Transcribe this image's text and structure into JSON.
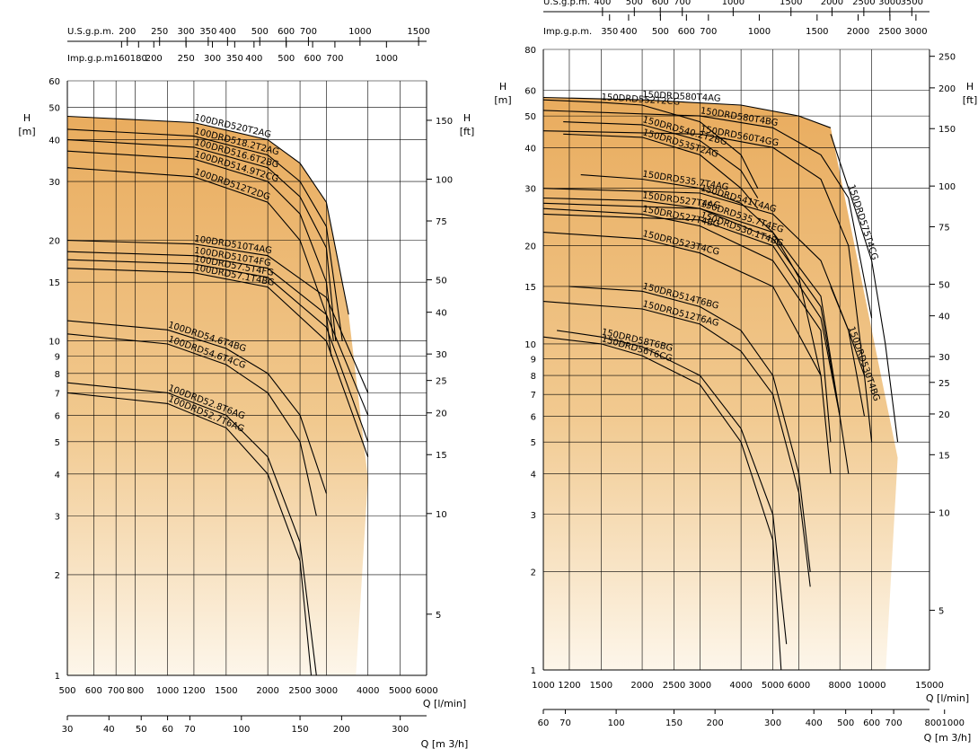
{
  "chart_data": [
    {
      "type": "line",
      "scale": "log-log",
      "grid": true,
      "xlabel": "Q [l/min]",
      "ylabel_left": "H [m]",
      "ylabel_right": "H [ft]",
      "xlabel_bottom": "Q [m 3/h]",
      "us_gpm_label": "U.S.g.p.m.",
      "imp_gpm_label": "Imp.g.p.m.",
      "xlim": [
        500,
        6000
      ],
      "ylim": [
        1,
        60
      ],
      "x_ticks": [
        "500",
        "600",
        "700",
        "800",
        "1000",
        "1200",
        "1500",
        "2000",
        "2500",
        "3000",
        "4000",
        "5000",
        "6000"
      ],
      "y_ticks": [
        "1",
        "2",
        "3",
        "4",
        "5",
        "6",
        "7",
        "8",
        "9",
        "10",
        "15",
        "20",
        "30",
        "40",
        "50",
        "60"
      ],
      "ft_ticks": [
        "5",
        "10",
        "15",
        "20",
        "25",
        "30",
        "40",
        "50",
        "75",
        "100",
        "150"
      ],
      "m3h_ticks": [
        "30",
        "40",
        "50",
        "60",
        "70",
        "100",
        "150",
        "200",
        "300"
      ],
      "us_ticks": [
        "200",
        "250",
        "300",
        "350",
        "400",
        "500",
        "600",
        "700",
        "1000",
        "1500"
      ],
      "imp_ticks": [
        "160",
        "180",
        "200",
        "250",
        "300",
        "350",
        "400",
        "500",
        "600",
        "700",
        "1000"
      ],
      "series": [
        {
          "name": "100DRD520T2AG",
          "points": [
            [
              500,
              47
            ],
            [
              1200,
              45
            ],
            [
              2000,
              40
            ],
            [
              2500,
              34
            ],
            [
              3000,
              26
            ],
            [
              3500,
              12
            ]
          ]
        },
        {
          "name": "100DRD518.2T2AG",
          "points": [
            [
              500,
              43
            ],
            [
              1200,
              41
            ],
            [
              2000,
              36
            ],
            [
              2500,
              30
            ],
            [
              3000,
              22
            ],
            [
              3350,
              10
            ]
          ]
        },
        {
          "name": "100DRD516.6T2BG",
          "points": [
            [
              500,
              40
            ],
            [
              1200,
              38
            ],
            [
              2000,
              33
            ],
            [
              2500,
              27
            ],
            [
              3000,
              19
            ],
            [
              3200,
              10
            ]
          ]
        },
        {
          "name": "100DRD514.9T2CG",
          "points": [
            [
              500,
              37
            ],
            [
              1200,
              35
            ],
            [
              2000,
              30
            ],
            [
              2500,
              24
            ],
            [
              3000,
              15
            ],
            [
              3150,
              10
            ]
          ]
        },
        {
          "name": "100DRD512T2DG",
          "points": [
            [
              500,
              33
            ],
            [
              1200,
              31
            ],
            [
              2000,
              26
            ],
            [
              2500,
              20
            ],
            [
              3000,
              12
            ],
            [
              3100,
              9
            ]
          ]
        },
        {
          "name": "100DRD510T4AG",
          "points": [
            [
              500,
              20
            ],
            [
              1200,
              19.5
            ],
            [
              2000,
              18
            ],
            [
              3000,
              13.5
            ],
            [
              4000,
              7
            ]
          ]
        },
        {
          "name": "100DRD510T4FG",
          "points": [
            [
              500,
              18.5
            ],
            [
              1200,
              18
            ],
            [
              2000,
              16.5
            ],
            [
              3000,
              12
            ],
            [
              4000,
              6
            ]
          ]
        },
        {
          "name": "100DRD57.5T4FG",
          "points": [
            [
              500,
              17.5
            ],
            [
              1200,
              17
            ],
            [
              2000,
              15.5
            ],
            [
              3000,
              11
            ],
            [
              4000,
              5
            ]
          ]
        },
        {
          "name": "100DRD57.1T4BG",
          "points": [
            [
              500,
              16.5
            ],
            [
              1200,
              16
            ],
            [
              2000,
              14.5
            ],
            [
              3000,
              10
            ],
            [
              4000,
              4.5
            ]
          ]
        },
        {
          "name": "100DRD54.6T4BG",
          "points": [
            [
              500,
              11.5
            ],
            [
              1000,
              10.8
            ],
            [
              1500,
              9.5
            ],
            [
              2000,
              8
            ],
            [
              2500,
              6
            ],
            [
              3000,
              3.5
            ]
          ]
        },
        {
          "name": "100DRD54.6T4CG",
          "points": [
            [
              500,
              10.5
            ],
            [
              1000,
              9.8
            ],
            [
              1500,
              8.5
            ],
            [
              2000,
              7
            ],
            [
              2500,
              5
            ],
            [
              2800,
              3
            ]
          ]
        },
        {
          "name": "100DRD52.8T6AG",
          "points": [
            [
              500,
              7.5
            ],
            [
              1000,
              7
            ],
            [
              1500,
              6
            ],
            [
              2000,
              4.5
            ],
            [
              2500,
              2.5
            ],
            [
              2800,
              1
            ]
          ]
        },
        {
          "name": "100DRD52.7T6AG",
          "points": [
            [
              500,
              7
            ],
            [
              1000,
              6.5
            ],
            [
              1500,
              5.5
            ],
            [
              2000,
              4
            ],
            [
              2500,
              2.2
            ],
            [
              2700,
              1
            ]
          ]
        }
      ]
    },
    {
      "type": "line",
      "scale": "log-log",
      "grid": true,
      "xlabel": "Q [l/min]",
      "ylabel_left": "H [m]",
      "ylabel_right": "H [ft]",
      "xlabel_bottom": "Q [m 3/h]",
      "us_gpm_label": "U.S.g.p.m.",
      "imp_gpm_label": "Imp.g.p.m.",
      "xlim": [
        1000,
        15000
      ],
      "ylim": [
        1,
        80
      ],
      "x_ticks": [
        "1000",
        "1200",
        "1500",
        "2000",
        "2500",
        "3000",
        "4000",
        "5000",
        "6000",
        "8000",
        "10000",
        "15000"
      ],
      "y_ticks": [
        "1",
        "2",
        "3",
        "4",
        "5",
        "6",
        "7",
        "8",
        "9",
        "10",
        "15",
        "20",
        "30",
        "40",
        "50",
        "60",
        "80"
      ],
      "ft_ticks": [
        "5",
        "10",
        "15",
        "20",
        "25",
        "30",
        "40",
        "50",
        "75",
        "100",
        "150",
        "200",
        "250"
      ],
      "m3h_ticks": [
        "60",
        "70",
        "100",
        "150",
        "200",
        "300",
        "400",
        "500",
        "600",
        "700",
        "8001000"
      ],
      "us_ticks": [
        "400",
        "500",
        "600",
        "700",
        "1000",
        "1500",
        "2000",
        "2500",
        "3000",
        "3500"
      ],
      "imp_ticks": [
        "350",
        "400",
        "500",
        "600",
        "700",
        "1000",
        "1500",
        "2000",
        "2500",
        "3000"
      ],
      "series": [
        {
          "name": "150DRD580T4AG",
          "points": [
            [
              1000,
              57
            ],
            [
              2000,
              56
            ],
            [
              4000,
              54
            ],
            [
              6000,
              50
            ],
            [
              7500,
              46
            ]
          ]
        },
        {
          "name": "150DRD552T2CG",
          "points": [
            [
              1000,
              56
            ],
            [
              1500,
              55
            ],
            [
              2000,
              54
            ],
            [
              3000,
              48
            ],
            [
              4000,
              38
            ],
            [
              4500,
              30
            ]
          ]
        },
        {
          "name": "150DRD580T4BG",
          "points": [
            [
              1000,
              52
            ],
            [
              3000,
              50
            ],
            [
              5000,
              46
            ],
            [
              7000,
              38
            ],
            [
              8500,
              28
            ],
            [
              10000,
              12
            ]
          ]
        },
        {
          "name": "150DRD540.2T2BG",
          "points": [
            [
              1150,
              48
            ],
            [
              2000,
              47
            ],
            [
              3000,
              42
            ],
            [
              4000,
              34
            ],
            [
              4500,
              28
            ]
          ]
        },
        {
          "name": "150DRD560T4GG",
          "points": [
            [
              1000,
              45
            ],
            [
              3000,
              44
            ],
            [
              5000,
              40
            ],
            [
              7000,
              32
            ],
            [
              8500,
              20
            ],
            [
              9500,
              8
            ]
          ]
        },
        {
          "name": "150DRD535T2AG",
          "points": [
            [
              1150,
              44
            ],
            [
              2000,
              43
            ],
            [
              3000,
              38
            ],
            [
              4000,
              30
            ],
            [
              4500,
              26
            ]
          ]
        },
        {
          "name": "150DRD575T4CG",
          "points": [
            [
              7500,
              44
            ],
            [
              8500,
              30
            ],
            [
              10000,
              18
            ],
            [
              11000,
              10
            ],
            [
              12000,
              5
            ]
          ]
        },
        {
          "name": "150DRD535.7T4AG",
          "points": [
            [
              1300,
              33
            ],
            [
              2000,
              32
            ],
            [
              3000,
              30
            ],
            [
              4000,
              27
            ],
            [
              5000,
              22
            ],
            [
              6000,
              16
            ],
            [
              7000,
              8
            ]
          ]
        },
        {
          "name": "150DRD541T4AG",
          "points": [
            [
              1000,
              30
            ],
            [
              3000,
              29
            ],
            [
              5000,
              25
            ],
            [
              7000,
              18
            ],
            [
              8500,
              11
            ],
            [
              9500,
              6
            ]
          ]
        },
        {
          "name": "150DRD527T4AG",
          "points": [
            [
              1000,
              28
            ],
            [
              2000,
              27.5
            ],
            [
              3000,
              26
            ],
            [
              5000,
              21
            ],
            [
              7000,
              13
            ],
            [
              8000,
              6
            ]
          ]
        },
        {
          "name": "150DRD535.7T4EG",
          "points": [
            [
              1000,
              27
            ],
            [
              3000,
              26
            ],
            [
              5000,
              22
            ],
            [
              7000,
              14
            ],
            [
              8000,
              6
            ],
            [
              8500,
              4
            ]
          ]
        },
        {
          "name": "150DRD527T4BG",
          "points": [
            [
              1000,
              26
            ],
            [
              2000,
              25
            ],
            [
              3000,
              23
            ],
            [
              5000,
              18
            ],
            [
              7000,
              11
            ],
            [
              7500,
              5
            ]
          ]
        },
        {
          "name": "150DRD530.1T4BG",
          "points": [
            [
              1000,
              25
            ],
            [
              3000,
              24
            ],
            [
              5000,
              20
            ],
            [
              7000,
              12
            ],
            [
              8000,
              6
            ]
          ]
        },
        {
          "name": "150DRD523T4CG",
          "points": [
            [
              1000,
              22
            ],
            [
              2000,
              21
            ],
            [
              3000,
              19
            ],
            [
              5000,
              15
            ],
            [
              7000,
              8
            ],
            [
              7500,
              4
            ]
          ]
        },
        {
          "name": "150DRD530T4BG",
          "points": [
            [
              7500,
              15
            ],
            [
              8500,
              11
            ],
            [
              9500,
              8
            ],
            [
              10000,
              5
            ]
          ]
        },
        {
          "name": "150DRD514T6BG",
          "points": [
            [
              1200,
              15
            ],
            [
              2000,
              14.5
            ],
            [
              3000,
              13
            ],
            [
              4000,
              11
            ],
            [
              5000,
              8
            ],
            [
              6000,
              4
            ],
            [
              6500,
              2
            ]
          ]
        },
        {
          "name": "150DRD512T6AG",
          "points": [
            [
              1000,
              13.5
            ],
            [
              2000,
              12.8
            ],
            [
              3000,
              11.5
            ],
            [
              4000,
              9.5
            ],
            [
              5000,
              7
            ],
            [
              6000,
              3.5
            ],
            [
              6500,
              1.8
            ]
          ]
        },
        {
          "name": "150DRD58T6BG",
          "points": [
            [
              1100,
              11
            ],
            [
              1500,
              10.5
            ],
            [
              2000,
              9.8
            ],
            [
              3000,
              8
            ],
            [
              4000,
              5.5
            ],
            [
              5000,
              3
            ],
            [
              5500,
              1.2
            ]
          ]
        },
        {
          "name": "150DRD56T6CG",
          "points": [
            [
              1000,
              10.5
            ],
            [
              1500,
              10
            ],
            [
              2000,
              9.2
            ],
            [
              3000,
              7.5
            ],
            [
              4000,
              5
            ],
            [
              5000,
              2.5
            ],
            [
              5300,
              1
            ]
          ]
        }
      ]
    }
  ]
}
